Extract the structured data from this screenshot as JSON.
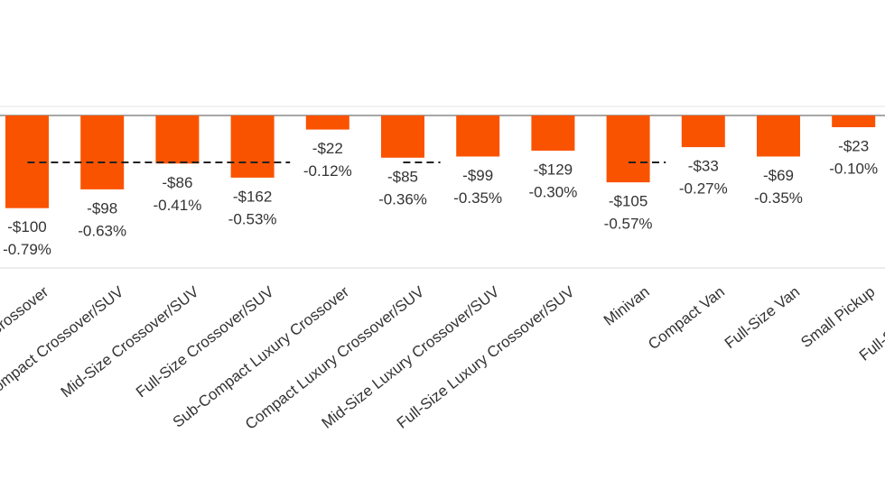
{
  "chart_data": {
    "type": "bar",
    "categories": [
      "Sub-Compact Crossover",
      "Compact Crossover/SUV",
      "Mid-Size Crossover/SUV",
      "Full-Size Crossover/SUV",
      "Sub-Compact Luxury Crossover",
      "Compact Luxury Crossover/SUV",
      "Mid-Size Luxury Crossover/SUV",
      "Full-Size Luxury Crossover/SUV",
      "Minivan",
      "Compact Van",
      "Full-Size Van",
      "Small Pickup",
      "Full-Size Pickup"
    ],
    "values": [
      -0.79,
      -0.63,
      -0.41,
      -0.53,
      -0.12,
      -0.36,
      -0.35,
      -0.3,
      -0.57,
      -0.27,
      -0.35,
      -0.1,
      null
    ],
    "value_labels": [
      [
        "-$100",
        "-0.79%"
      ],
      [
        "-$98",
        "-0.63%"
      ],
      [
        "-$86",
        "-0.41%"
      ],
      [
        "-$162",
        "-0.53%"
      ],
      [
        "-$22",
        "-0.12%"
      ],
      [
        "-$85",
        "-0.36%"
      ],
      [
        "-$99",
        "-0.35%"
      ],
      [
        "-$129",
        "-0.30%"
      ],
      [
        "-$105",
        "-0.57%"
      ],
      [
        "-$33",
        "-0.27%"
      ],
      [
        "-$69",
        "-0.35%"
      ],
      [
        "-$23",
        "-0.10%"
      ],
      null
    ],
    "color": "#fa5300",
    "averages": [
      {
        "from": "Sub-Compact Crossover",
        "to": "Full-Size Crossover/SUV",
        "value": -0.4
      },
      {
        "from": "Compact Luxury Crossover/SUV",
        "to": "Compact Luxury Crossover/SUV",
        "value": -0.4
      },
      {
        "from": "Minivan",
        "to": "Minivan",
        "value": -0.4
      }
    ],
    "ylim": [
      -1.3,
      0
    ]
  }
}
